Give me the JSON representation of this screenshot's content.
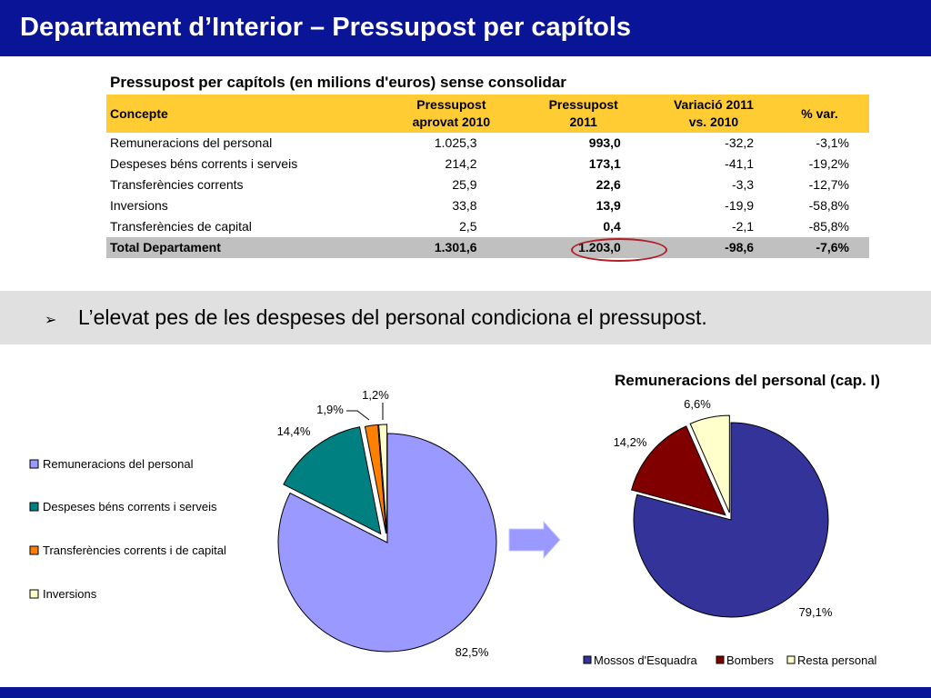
{
  "header": {
    "title": "Departament d’Interior – Pressupost per capítols"
  },
  "table": {
    "title": "Pressupost per capítols (en milions d'euros) sense consolidar",
    "columns": [
      {
        "line1": "Concepte",
        "line2": ""
      },
      {
        "line1": "Pressupost",
        "line2": "aprovat 2010"
      },
      {
        "line1": "Pressupost",
        "line2": "2011"
      },
      {
        "line1": "Variació 2011",
        "line2": "vs. 2010"
      },
      {
        "line1": "% var.",
        "line2": ""
      }
    ],
    "rows": [
      {
        "concept": "Remuneracions del personal",
        "b2010": "1.025,3",
        "b2011": "993,0",
        "diff": "-32,2",
        "pct": "-3,1%"
      },
      {
        "concept": "Despeses béns corrents i serveis",
        "b2010": "214,2",
        "b2011": "173,1",
        "diff": "-41,1",
        "pct": "-19,2%"
      },
      {
        "concept": "Transferències corrents",
        "b2010": "25,9",
        "b2011": "22,6",
        "diff": "-3,3",
        "pct": "-12,7%"
      },
      {
        "concept": "Inversions",
        "b2010": "33,8",
        "b2011": "13,9",
        "diff": "-19,9",
        "pct": "-58,8%"
      },
      {
        "concept": "Transferències de capital",
        "b2010": "2,5",
        "b2011": "0,4",
        "diff": "-2,1",
        "pct": "-85,8%"
      }
    ],
    "total": {
      "concept": "Total Departament",
      "b2010": "1.301,6",
      "b2011": "1.203,0",
      "diff": "-98,6",
      "pct": "-7,6%"
    }
  },
  "highlight": {
    "text": "L’elevat pes de les despeses del personal condiciona el pressupost."
  },
  "chart_data": [
    {
      "type": "pie",
      "title": "",
      "labels": [
        "Remuneracions del personal",
        "Despeses béns corrents i serveis",
        "Transferències corrents i de capital",
        "Inversions"
      ],
      "values": [
        82.5,
        14.4,
        1.9,
        1.2
      ],
      "data_labels": [
        "82,5%",
        "14,4%",
        "1,9%",
        "1,2%"
      ],
      "colors": [
        "#9999ff",
        "#008080",
        "#ff8000",
        "#ffffcc"
      ],
      "legend_position": "left",
      "exploded": true
    },
    {
      "type": "pie",
      "title": "Remuneracions del personal (cap. I)",
      "labels": [
        "Mossos d'Esquadra",
        "Bombers",
        "Resta personal"
      ],
      "values": [
        79.1,
        14.2,
        6.6
      ],
      "data_labels": [
        "79,1%",
        "14,2%",
        "6,6%"
      ],
      "colors": [
        "#333399",
        "#800000",
        "#ffffcc"
      ],
      "legend_position": "bottom",
      "exploded": true
    }
  ],
  "colors": {
    "header_bg": "#0a1496",
    "table_header": "#ffcc33",
    "total_row": "#c0c0c0",
    "highlight_ring": "#b01f24",
    "band_bg": "#e0e0e0",
    "arrow_fill": "#9999ff"
  }
}
